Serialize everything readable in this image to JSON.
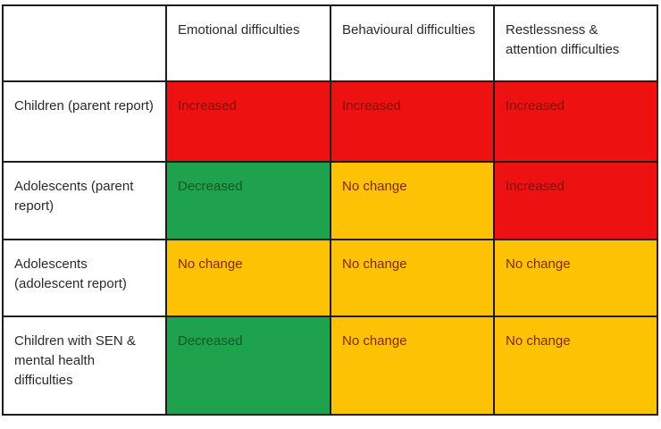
{
  "table": {
    "columns": [
      "",
      "Emotional difficulties",
      "Behavioural difficulties",
      "Restlessness & attention difficulties"
    ],
    "rows": [
      {
        "label": "Children (parent report)",
        "cells": [
          {
            "text": "Increased",
            "status": "increased"
          },
          {
            "text": "Increased",
            "status": "increased"
          },
          {
            "text": "Increased",
            "status": "increased"
          }
        ]
      },
      {
        "label": "Adolescents (parent report)",
        "cells": [
          {
            "text": "Decreased",
            "status": "decreased"
          },
          {
            "text": "No change",
            "status": "no_change"
          },
          {
            "text": "Increased",
            "status": "increased"
          }
        ]
      },
      {
        "label": "Adolescents (adolescent report)",
        "cells": [
          {
            "text": "No change",
            "status": "no_change"
          },
          {
            "text": "No change",
            "status": "no_change"
          },
          {
            "text": "No change",
            "status": "no_change"
          }
        ]
      },
      {
        "label": "Children with SEN & mental health difficulties",
        "cells": [
          {
            "text": "Decreased",
            "status": "decreased"
          },
          {
            "text": "No change",
            "status": "no_change"
          },
          {
            "text": "No change",
            "status": "no_change"
          }
        ]
      }
    ]
  },
  "colors": {
    "increased": {
      "bg": "#ee1111",
      "text": "#8a0b0b"
    },
    "decreased": {
      "bg": "#1fa24d",
      "text": "#0c5a28"
    },
    "no_change": {
      "bg": "#fcc203",
      "text": "#7f2b05"
    },
    "border": "#1c1c1c",
    "label_text": "#2a2a2a"
  },
  "chart_data": {
    "type": "table",
    "title": "",
    "columns": [
      "Emotional difficulties",
      "Behavioural difficulties",
      "Restlessness & attention difficulties"
    ],
    "rows": [
      "Children (parent report)",
      "Adolescents (parent report)",
      "Adolescents (adolescent report)",
      "Children with SEN & mental health difficulties"
    ],
    "values": [
      [
        "Increased",
        "Increased",
        "Increased"
      ],
      [
        "Decreased",
        "No change",
        "Increased"
      ],
      [
        "No change",
        "No change",
        "No change"
      ],
      [
        "Decreased",
        "No change",
        "No change"
      ]
    ],
    "cell_color_coding": {
      "Increased": "red",
      "Decreased": "green",
      "No change": "amber"
    }
  }
}
